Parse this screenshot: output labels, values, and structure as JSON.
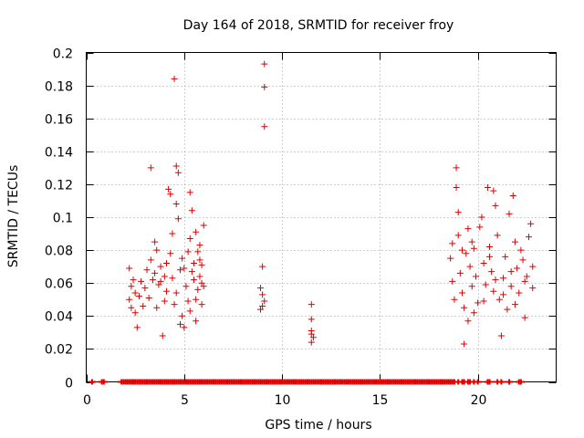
{
  "chart_data": {
    "type": "scatter",
    "title": "Day 164 of 2018, SRMTID for receiver froy",
    "xlabel": "GPS time / hours",
    "ylabel": "SRMTID / TECUs",
    "xlim": [
      0,
      24
    ],
    "ylim": [
      0,
      0.2
    ],
    "x_ticks": [
      0,
      5,
      10,
      15,
      20
    ],
    "x_tick_labels": [
      "0",
      "5",
      "10",
      "15",
      "20"
    ],
    "y_ticks": [
      0,
      0.02,
      0.04,
      0.06,
      0.08,
      0.1,
      0.12,
      0.14,
      0.16,
      0.18,
      0.2
    ],
    "y_tick_labels": [
      "0",
      "0.02",
      "0.04",
      "0.06",
      "0.08",
      "0.1",
      "0.12",
      "0.14",
      "0.16",
      "0.18",
      "0.2"
    ],
    "grid": true,
    "marker": "+",
    "color": "#dd0000",
    "series": [
      {
        "name": "SRMTID",
        "points": [
          [
            2.2,
            0.069
          ],
          [
            2.3,
            0.058
          ],
          [
            2.2,
            0.05
          ],
          [
            2.3,
            0.045
          ],
          [
            2.4,
            0.062
          ],
          [
            2.5,
            0.054
          ],
          [
            2.6,
            0.033
          ],
          [
            2.7,
            0.052
          ],
          [
            2.8,
            0.061
          ],
          [
            2.9,
            0.046
          ],
          [
            3.1,
            0.068
          ],
          [
            3.2,
            0.051
          ],
          [
            3.3,
            0.13
          ],
          [
            3.3,
            0.074
          ],
          [
            3.4,
            0.062
          ],
          [
            3.5,
            0.066
          ],
          [
            3.6,
            0.045
          ],
          [
            3.7,
            0.059
          ],
          [
            3.8,
            0.07
          ],
          [
            3.9,
            0.028
          ],
          [
            4.0,
            0.064
          ],
          [
            4.1,
            0.055
          ],
          [
            4.1,
            0.072
          ],
          [
            4.2,
            0.117
          ],
          [
            4.3,
            0.114
          ],
          [
            4.3,
            0.078
          ],
          [
            4.4,
            0.09
          ],
          [
            4.5,
            0.047
          ],
          [
            4.5,
            0.184
          ],
          [
            4.6,
            0.131
          ],
          [
            4.6,
            0.108
          ],
          [
            4.7,
            0.099
          ],
          [
            4.7,
            0.127
          ],
          [
            4.8,
            0.068
          ],
          [
            4.9,
            0.075
          ],
          [
            4.9,
            0.04
          ],
          [
            5.0,
            0.033
          ],
          [
            5.1,
            0.058
          ],
          [
            5.2,
            0.079
          ],
          [
            5.2,
            0.049
          ],
          [
            5.3,
            0.115
          ],
          [
            5.3,
            0.087
          ],
          [
            5.4,
            0.067
          ],
          [
            5.4,
            0.104
          ],
          [
            5.5,
            0.072
          ],
          [
            5.5,
            0.062
          ],
          [
            5.6,
            0.037
          ],
          [
            5.6,
            0.091
          ],
          [
            5.7,
            0.056
          ],
          [
            5.7,
            0.079
          ],
          [
            5.8,
            0.064
          ],
          [
            5.8,
            0.083
          ],
          [
            5.9,
            0.071
          ],
          [
            5.9,
            0.06
          ],
          [
            6.0,
            0.095
          ],
          [
            6.0,
            0.058
          ],
          [
            3.6,
            0.08
          ],
          [
            4.0,
            0.049
          ],
          [
            4.4,
            0.063
          ],
          [
            5.0,
            0.069
          ],
          [
            5.6,
            0.05
          ],
          [
            5.9,
            0.047
          ],
          [
            2.5,
            0.042
          ],
          [
            3.0,
            0.057
          ],
          [
            3.5,
            0.085
          ],
          [
            4.8,
            0.035
          ],
          [
            5.3,
            0.043
          ],
          [
            5.8,
            0.074
          ],
          [
            3.8,
            0.061
          ],
          [
            4.6,
            0.054
          ],
          [
            9.0,
            0.07
          ],
          [
            8.9,
            0.057
          ],
          [
            9.0,
            0.053
          ],
          [
            9.1,
            0.049
          ],
          [
            8.9,
            0.044
          ],
          [
            9.0,
            0.046
          ],
          [
            9.1,
            0.193
          ],
          [
            9.1,
            0.179
          ],
          [
            9.1,
            0.155
          ],
          [
            11.5,
            0.047
          ],
          [
            11.5,
            0.038
          ],
          [
            11.5,
            0.031
          ],
          [
            11.5,
            0.029
          ],
          [
            11.6,
            0.027
          ],
          [
            11.5,
            0.024
          ],
          [
            18.6,
            0.075
          ],
          [
            18.7,
            0.061
          ],
          [
            18.8,
            0.05
          ],
          [
            18.9,
            0.13
          ],
          [
            18.9,
            0.118
          ],
          [
            19.0,
            0.103
          ],
          [
            19.0,
            0.089
          ],
          [
            19.1,
            0.066
          ],
          [
            19.2,
            0.054
          ],
          [
            19.3,
            0.045
          ],
          [
            19.3,
            0.023
          ],
          [
            19.4,
            0.078
          ],
          [
            19.5,
            0.037
          ],
          [
            19.6,
            0.07
          ],
          [
            19.7,
            0.058
          ],
          [
            19.7,
            0.085
          ],
          [
            19.8,
            0.081
          ],
          [
            19.9,
            0.064
          ],
          [
            20.0,
            0.048
          ],
          [
            20.1,
            0.094
          ],
          [
            20.2,
            0.1
          ],
          [
            20.3,
            0.072
          ],
          [
            20.4,
            0.059
          ],
          [
            20.5,
            0.118
          ],
          [
            20.6,
            0.082
          ],
          [
            20.7,
            0.067
          ],
          [
            20.8,
            0.116
          ],
          [
            20.8,
            0.055
          ],
          [
            20.9,
            0.107
          ],
          [
            21.0,
            0.089
          ],
          [
            21.1,
            0.05
          ],
          [
            21.2,
            0.028
          ],
          [
            21.3,
            0.063
          ],
          [
            21.4,
            0.076
          ],
          [
            21.5,
            0.044
          ],
          [
            21.6,
            0.102
          ],
          [
            21.7,
            0.058
          ],
          [
            21.8,
            0.113
          ],
          [
            21.9,
            0.085
          ],
          [
            22.0,
            0.069
          ],
          [
            22.1,
            0.054
          ],
          [
            22.2,
            0.08
          ],
          [
            22.3,
            0.074
          ],
          [
            22.4,
            0.039
          ],
          [
            22.5,
            0.064
          ],
          [
            22.6,
            0.088
          ],
          [
            22.7,
            0.096
          ],
          [
            22.8,
            0.057
          ],
          [
            22.8,
            0.07
          ],
          [
            19.2,
            0.08
          ],
          [
            19.8,
            0.042
          ],
          [
            20.3,
            0.049
          ],
          [
            20.9,
            0.062
          ],
          [
            21.3,
            0.053
          ],
          [
            21.9,
            0.047
          ],
          [
            22.4,
            0.061
          ],
          [
            18.7,
            0.084
          ],
          [
            19.5,
            0.093
          ],
          [
            20.6,
            0.076
          ],
          [
            21.7,
            0.067
          ]
        ]
      }
    ],
    "baseline_x": [
      0.3,
      0.8,
      0.9,
      1.8,
      1.9,
      2.0,
      2.1,
      2.2,
      2.3,
      2.4,
      2.5,
      2.6,
      2.7,
      2.8,
      2.9,
      3.0,
      3.1,
      3.2,
      3.3,
      3.4,
      3.5,
      3.6,
      3.7,
      3.8,
      3.9,
      4.0,
      4.1,
      4.2,
      4.3,
      4.4,
      4.5,
      4.6,
      4.7,
      4.8,
      4.9,
      5.0,
      5.1,
      5.2,
      5.3,
      5.4,
      5.5,
      5.6,
      5.7,
      5.8,
      5.9,
      6.0,
      6.1,
      6.2,
      6.3,
      6.4,
      6.5,
      6.6,
      6.7,
      6.8,
      6.9,
      7.0,
      7.1,
      7.2,
      7.3,
      7.4,
      7.5,
      7.6,
      7.7,
      7.8,
      7.9,
      8.0,
      8.1,
      8.2,
      8.3,
      8.4,
      8.5,
      8.6,
      8.7,
      8.8,
      8.9,
      9.0,
      9.1,
      9.2,
      9.3,
      9.4,
      9.5,
      9.6,
      9.7,
      9.8,
      9.9,
      10.0,
      10.1,
      10.2,
      10.3,
      10.4,
      10.5,
      10.6,
      10.7,
      10.8,
      10.9,
      11.0,
      11.1,
      11.2,
      11.3,
      11.4,
      11.5,
      11.6,
      11.7,
      11.8,
      11.9,
      12.0,
      12.1,
      12.2,
      12.3,
      12.4,
      12.5,
      12.6,
      12.7,
      12.8,
      12.9,
      13.0,
      13.1,
      13.2,
      13.3,
      13.4,
      13.5,
      13.6,
      13.7,
      13.8,
      13.9,
      14.0,
      14.1,
      14.2,
      14.3,
      14.4,
      14.5,
      14.6,
      14.7,
      14.8,
      14.9,
      15.0,
      15.1,
      15.2,
      15.3,
      15.4,
      15.5,
      15.6,
      15.7,
      15.8,
      15.9,
      16.0,
      16.1,
      16.2,
      16.3,
      16.4,
      16.5,
      16.6,
      16.7,
      16.8,
      16.9,
      17.0,
      17.1,
      17.2,
      17.3,
      17.4,
      17.5,
      17.6,
      17.7,
      17.8,
      17.9,
      18.0,
      18.1,
      18.2,
      18.3,
      18.4,
      18.5,
      18.6,
      18.7,
      18.8,
      19.0,
      19.2,
      19.3,
      19.5,
      19.6,
      19.8,
      20.0,
      20.5,
      20.6,
      21.0,
      21.2,
      21.6,
      22.1,
      22.2
    ]
  }
}
